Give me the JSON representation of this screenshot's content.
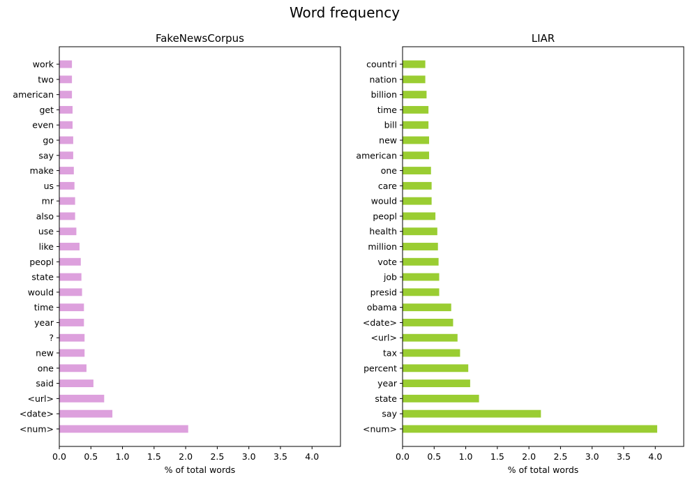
{
  "suptitle": "Word frequency",
  "chart_data": [
    {
      "type": "bar",
      "orientation": "horizontal",
      "title": "FakeNewsCorpus",
      "xlabel": "% of total words",
      "ylabel": "",
      "xlim": [
        0,
        4.45
      ],
      "xticks": [
        "0.0",
        "0.5",
        "1.0",
        "1.5",
        "2.0",
        "2.5",
        "3.0",
        "3.5",
        "4.0"
      ],
      "grid": false,
      "color": "#dda0dd",
      "categories": [
        "<num>",
        "<date>",
        "<url>",
        "said",
        "one",
        "new",
        "?",
        "year",
        "time",
        "would",
        "state",
        "peopl",
        "like",
        "use",
        "also",
        "mr",
        "us",
        "make",
        "say",
        "go",
        "even",
        "get",
        "american",
        "two",
        "work"
      ],
      "values": [
        2.04,
        0.84,
        0.71,
        0.54,
        0.43,
        0.4,
        0.4,
        0.39,
        0.39,
        0.36,
        0.35,
        0.34,
        0.32,
        0.27,
        0.25,
        0.25,
        0.24,
        0.23,
        0.22,
        0.22,
        0.21,
        0.21,
        0.2,
        0.2,
        0.2
      ]
    },
    {
      "type": "bar",
      "orientation": "horizontal",
      "title": "LIAR",
      "xlabel": "% of total words",
      "ylabel": "",
      "xlim": [
        0,
        4.45
      ],
      "xticks": [
        "0.0",
        "0.5",
        "1.0",
        "1.5",
        "2.0",
        "2.5",
        "3.0",
        "3.5",
        "4.0"
      ],
      "grid": false,
      "color": "#9acd32",
      "categories": [
        "<num>",
        "say",
        "state",
        "year",
        "percent",
        "tax",
        "<url>",
        "<date>",
        "obama",
        "presid",
        "job",
        "vote",
        "million",
        "health",
        "peopl",
        "would",
        "care",
        "one",
        "american",
        "new",
        "bill",
        "time",
        "billion",
        "nation",
        "countri"
      ],
      "values": [
        4.03,
        2.19,
        1.21,
        1.07,
        1.04,
        0.91,
        0.87,
        0.8,
        0.77,
        0.58,
        0.58,
        0.57,
        0.56,
        0.55,
        0.52,
        0.46,
        0.46,
        0.45,
        0.42,
        0.42,
        0.41,
        0.41,
        0.38,
        0.36,
        0.36
      ]
    }
  ]
}
